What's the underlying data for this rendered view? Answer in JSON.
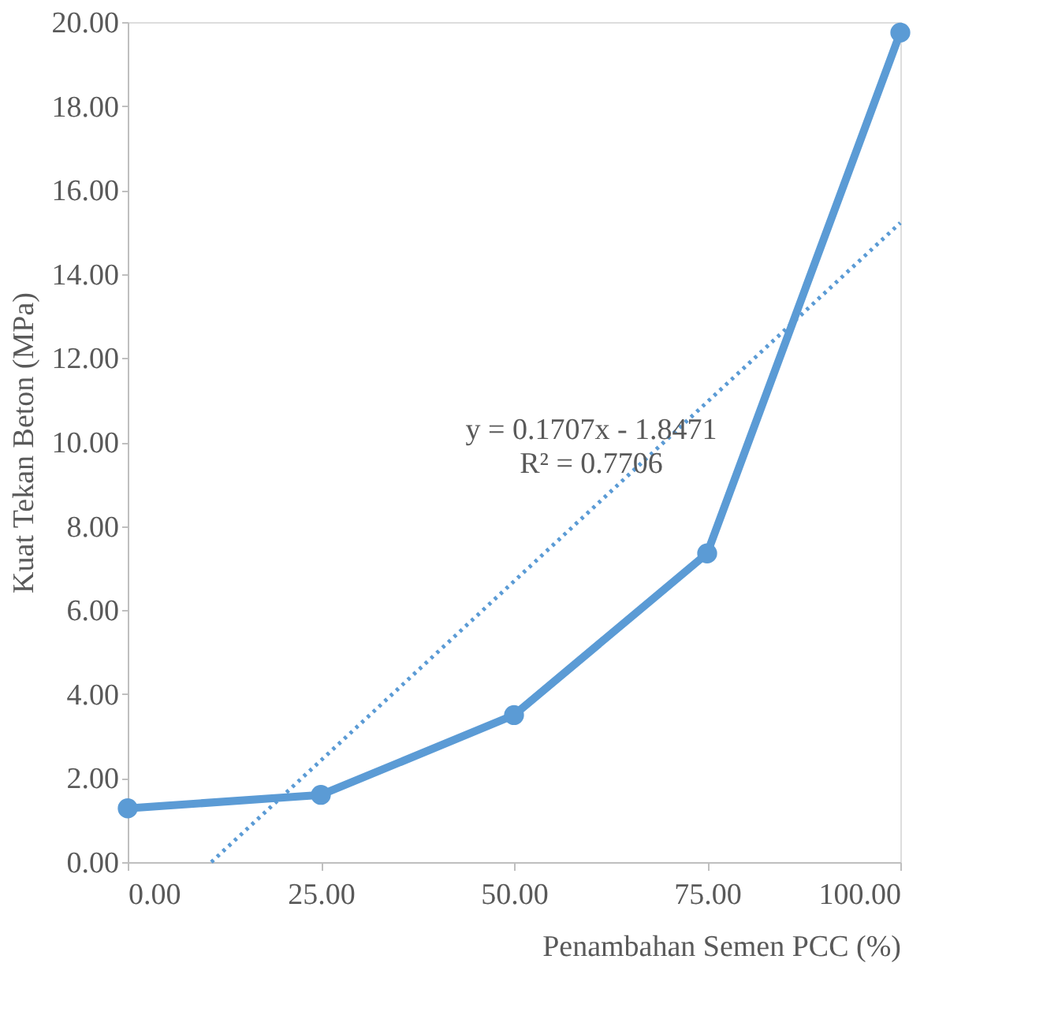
{
  "chart_data": {
    "type": "line",
    "xlabel": "Penambahan Semen PCC (%)",
    "ylabel": "Kuat Tekan Beton (MPa)",
    "x": [
      0,
      25,
      50,
      75,
      100
    ],
    "series": [
      {
        "color": "#5b9bd5",
        "values": [
          1.28,
          1.6,
          3.5,
          7.35,
          19.75
        ],
        "marker": "circle",
        "line_style": "solid"
      },
      {
        "type": "line",
        "color": "#5b9bd5",
        "x": [
          10.82,
          100
        ],
        "values": [
          0,
          15.22
        ],
        "marker": "none",
        "line_style": "dotted"
      }
    ],
    "annotations": [
      "y = 0.1707x - 1.8471",
      "R² = 0.7706"
    ],
    "xlim": [
      0,
      100
    ],
    "ylim": [
      0,
      20
    ],
    "xticks": [
      {
        "value": 0,
        "label": "0.00"
      },
      {
        "value": 25,
        "label": "25.00"
      },
      {
        "value": 50,
        "label": "50.00"
      },
      {
        "value": 75,
        "label": "75.00"
      },
      {
        "value": 100,
        "label": "100.00"
      }
    ],
    "yticks": [
      {
        "value": 0,
        "label": "0.00"
      },
      {
        "value": 2,
        "label": "2.00"
      },
      {
        "value": 4,
        "label": "4.00"
      },
      {
        "value": 6,
        "label": "6.00"
      },
      {
        "value": 8,
        "label": "8.00"
      },
      {
        "value": 10,
        "label": "10.00"
      },
      {
        "value": 12,
        "label": "12.00"
      },
      {
        "value": 14,
        "label": "14.00"
      },
      {
        "value": 16,
        "label": "16.00"
      },
      {
        "value": 18,
        "label": "18.00"
      },
      {
        "value": 20,
        "label": "20.00"
      }
    ],
    "grid": false
  }
}
